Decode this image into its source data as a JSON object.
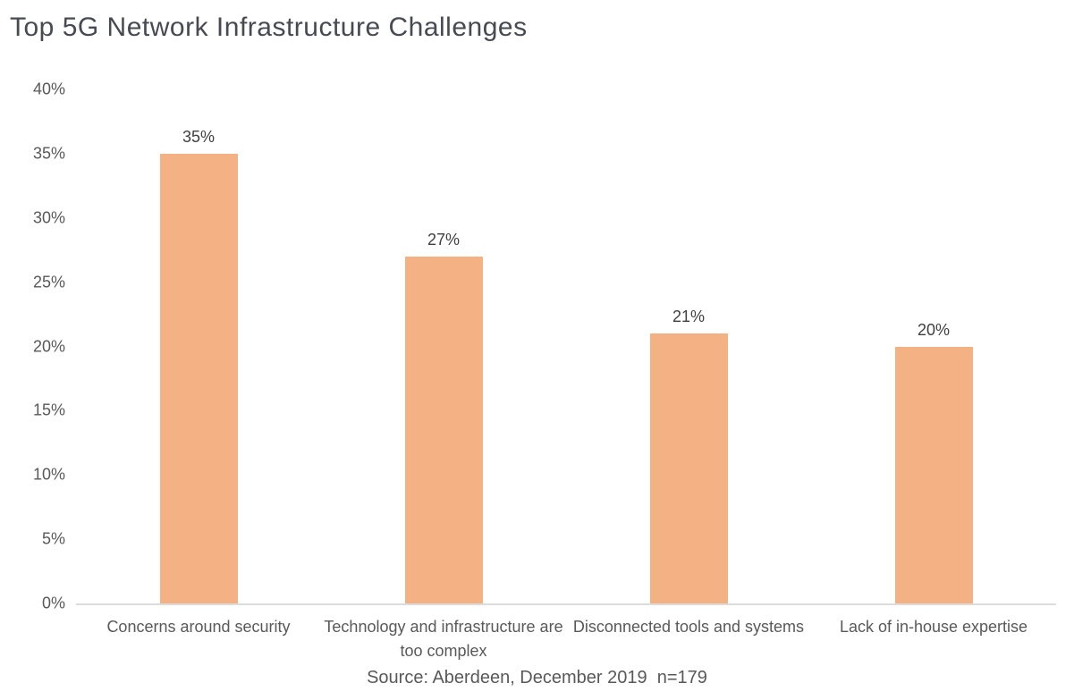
{
  "page": {
    "title": "Top 5G Network Infrastructure Challenges",
    "source_note": "Source: Aberdeen, December 2019  n=179"
  },
  "chart_data": {
    "type": "bar",
    "title": "Top 5G Network Infrastructure Challenges",
    "categories": [
      "Concerns around security",
      "Technology and infrastructure are too complex",
      "Disconnected tools and systems",
      "Lack of in-house expertise"
    ],
    "values": [
      35,
      27,
      21,
      20
    ],
    "data_labels": [
      "35%",
      "27%",
      "21%",
      "20%"
    ],
    "xlabel": "",
    "ylabel": "",
    "ylim": [
      0,
      40
    ],
    "ytick_step": 5,
    "ytick_labels": [
      "0%",
      "5%",
      "10%",
      "15%",
      "20%",
      "25%",
      "30%",
      "35%",
      "40%"
    ],
    "grid": false,
    "legend": false,
    "annotations": [
      "Source: Aberdeen, December 2019  n=179"
    ]
  },
  "colors": {
    "bar_fill": "#F4B183",
    "title_text": "#474A52",
    "axis_text": "#595959",
    "data_label_text": "#404040",
    "baseline": "#DCDCDC"
  }
}
